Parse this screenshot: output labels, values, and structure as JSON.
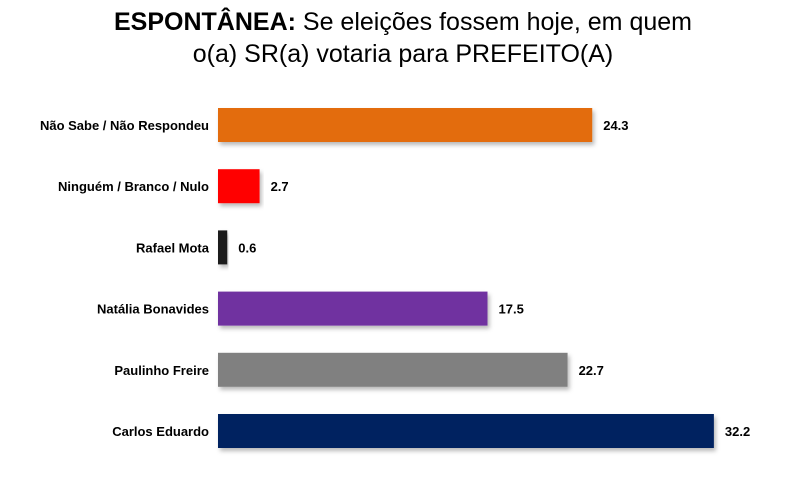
{
  "chart_data": {
    "type": "bar",
    "orientation": "horizontal",
    "title": {
      "line1_bold": "ESPONTÂNEA:",
      "line1_rest": " Se eleições fossem hoje, em quem",
      "line2": "o(a) SR(a) votaria para PREFEITO(A)"
    },
    "categories": [
      "Não Sabe / Não Respondeu",
      "Ninguém / Branco / Nulo",
      "Rafael Mota",
      "Natália Bonavides",
      "Paulinho Freire",
      "Carlos Eduardo"
    ],
    "values": [
      24.3,
      2.7,
      0.6,
      17.5,
      22.7,
      32.2
    ],
    "value_labels": [
      "24.3",
      "2.7",
      "0.6",
      "17.5",
      "22.7",
      "32.2"
    ],
    "colors": [
      "#E36C0A",
      "#FF0000",
      "#1F1F1F",
      "#7030A0",
      "#808080",
      "#002060"
    ],
    "xlim": [
      0,
      32.2
    ],
    "grid": false,
    "legend": "none"
  }
}
